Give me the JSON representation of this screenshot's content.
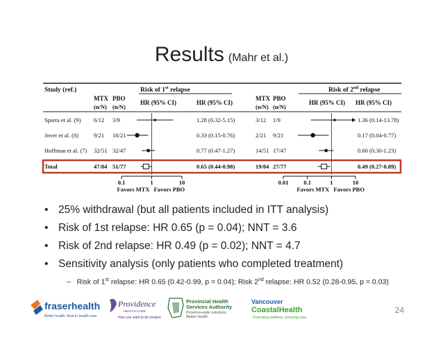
{
  "slide": {
    "title": "Results",
    "title_ref": "(Mahr et al.)",
    "page_number": "24"
  },
  "chart_data": {
    "type": "forest",
    "columns": {
      "study": "Study (ref.)",
      "mtx": "MTX",
      "pbo": "PBO",
      "n": "(n/N)",
      "hr_ci": "HR (95% CI)"
    },
    "panels": [
      {
        "heading_prefix": "Risk of 1",
        "heading_sup": "st",
        "heading_suffix": " relapse",
        "x_scale": "log",
        "xlim": [
          0.1,
          10
        ],
        "ticks": [
          "0.1",
          "1",
          "10"
        ],
        "favors_left": "Favors MTX",
        "favors_right": "Favors PBO",
        "rows": [
          {
            "study": "Spiera et al. (9)",
            "mtx": "6/12",
            "pbo": "3/9",
            "hr_label": "1.28 (0.32-5.15)",
            "hr": 1.28,
            "lo": 0.32,
            "hi": 5.15
          },
          {
            "study": "Jover et al. (8)",
            "mtx": "9/21",
            "pbo": "16/21",
            "hr_label": "0.33 (0.15-0.76)",
            "hr": 0.33,
            "lo": 0.15,
            "hi": 0.76
          },
          {
            "study": "Hoffman et al. (7)",
            "mtx": "32/51",
            "pbo": "32/47",
            "hr_label": "0.77 (0.47-1.27)",
            "hr": 0.77,
            "lo": 0.47,
            "hi": 1.27
          }
        ],
        "total": {
          "study": "Total",
          "mtx": "47/84",
          "pbo": "51/77",
          "hr_label": "0.65 (0.44-0.98)",
          "hr": 0.65,
          "lo": 0.44,
          "hi": 0.98
        }
      },
      {
        "heading_prefix": "Risk of 2",
        "heading_sup": "nd",
        "heading_suffix": " relapse",
        "x_scale": "log",
        "xlim": [
          0.01,
          10
        ],
        "ticks": [
          "0.01",
          "0.1",
          "1",
          "10"
        ],
        "favors_left": "Favors MTX",
        "favors_right": "Favors PBO",
        "rows": [
          {
            "study": "Spiera et al. (9)",
            "mtx": "3/12",
            "pbo": "1/9",
            "hr_label": "1.36 (0.14-13.78)",
            "hr": 1.36,
            "lo": 0.14,
            "hi": 13.78
          },
          {
            "study": "Jover et al. (8)",
            "mtx": "2/21",
            "pbo": "9/21",
            "hr_label": "0.17 (0.04-0.77)",
            "hr": 0.17,
            "lo": 0.04,
            "hi": 0.77
          },
          {
            "study": "Hoffman et al. (7)",
            "mtx": "14/51",
            "pbo": "17/47",
            "hr_label": "0.60 (0.30-1.23)",
            "hr": 0.6,
            "lo": 0.3,
            "hi": 1.23
          }
        ],
        "total": {
          "mtx": "19/84",
          "pbo": "27/77",
          "hr_label": "0.49 (0.27-0.89)",
          "hr": 0.49,
          "lo": 0.27,
          "hi": 0.89
        }
      }
    ]
  },
  "bullets": [
    "25% withdrawal (but all patients included in ITT analysis)",
    "Risk of 1st relapse: HR 0.65 (p = 0.04); NNT = 3.6",
    "Risk of 2nd relapse: HR 0.49 (p = 0.02); NNT = 4.7",
    "Sensitivity analysis (only patients who completed treatment)"
  ],
  "sub_bullet": {
    "dash": "–",
    "part1": "Risk of 1",
    "sup1": "st",
    "part2": " relapse: HR 0.65 (0.42-0.99, p = 0.04); Risk 2",
    "sup2": "nd",
    "part3": " relapse: HR 0.52 (0.28-0.95, p = 0.03)"
  },
  "logos": {
    "fraser_name": "fraserhealth",
    "fraser_tag": "Better health. Best in health care.",
    "providence_name": "Providence",
    "providence_sub": "HEALTH CARE",
    "providence_tag": "How you want to be treated.",
    "phsa_l1": "Provincial Health",
    "phsa_l2": "Services Authority",
    "phsa_l3": "Province-wide solutions.",
    "phsa_l4": "Better health.",
    "vch_l1": "Vancouver",
    "vch_l2": "CoastalHealth",
    "vch_tag": "Promoting wellness. Ensuring care.",
    "colors": {
      "fraser_blue": "#1b5aa6",
      "fraser_orange": "#e87722",
      "vch_green": "#3f9c35",
      "highlight_red": "#c0392b"
    }
  }
}
